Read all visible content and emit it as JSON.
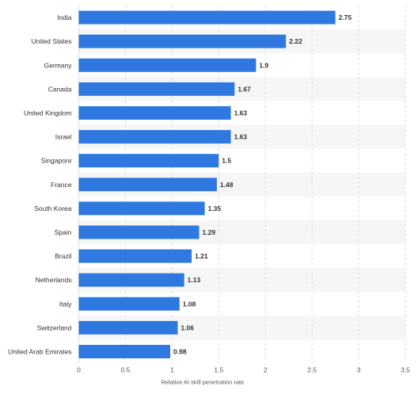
{
  "chart_data": {
    "type": "bar",
    "orientation": "horizontal",
    "categories": [
      "India",
      "United States",
      "Germany",
      "Canada",
      "United Kingdom",
      "Israel",
      "Singapore",
      "France",
      "South Korea",
      "Spain",
      "Brazil",
      "Netherlands",
      "Italy",
      "Switzerland",
      "United Arab Emirates"
    ],
    "values": [
      2.75,
      2.22,
      1.9,
      1.67,
      1.63,
      1.63,
      1.5,
      1.48,
      1.35,
      1.29,
      1.21,
      1.13,
      1.08,
      1.06,
      0.98
    ],
    "value_labels": [
      "2.75",
      "2.22",
      "1.9",
      "1.67",
      "1.63",
      "1.63",
      "1.5",
      "1.48",
      "1.35",
      "1.29",
      "1.21",
      "1.13",
      "1.08",
      "1.06",
      "0.98"
    ],
    "title": "",
    "xlabel": "Relative AI skill penetration rate",
    "ylabel": "",
    "xlim": [
      0,
      3.5
    ],
    "xticks": [
      0,
      0.5,
      1,
      1.5,
      2,
      2.5,
      3,
      3.5
    ],
    "xtick_labels": [
      "0",
      "0.5",
      "1",
      "1.5",
      "2",
      "2.5",
      "3",
      "3.5"
    ],
    "grid": true,
    "legend": false,
    "colors": {
      "bar": "#2f78e0",
      "alt_row_band": "#f6f6f6",
      "grid": "#dcdcdc",
      "text": "#333333"
    }
  }
}
